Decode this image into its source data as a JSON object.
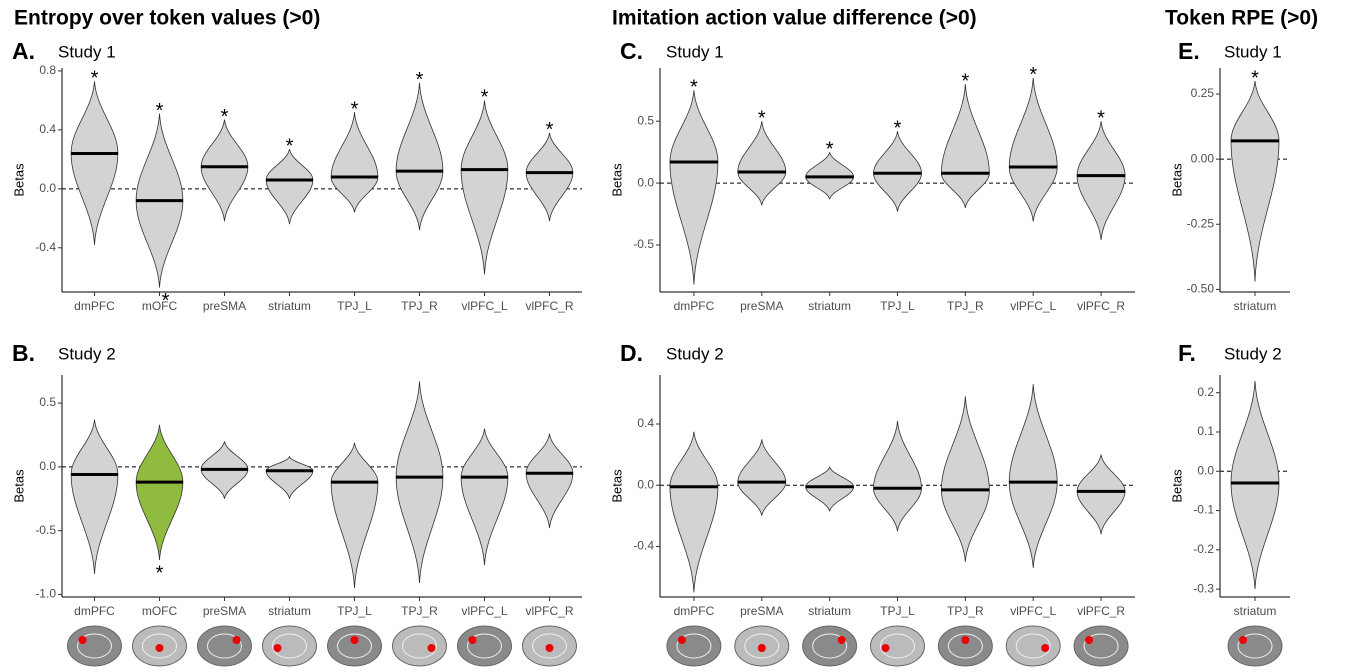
{
  "headers": [
    "Entropy over token values (>0)",
    "Imitation action value difference (>0)",
    "Token RPE (>0)"
  ],
  "chart_data": [
    {
      "type": "violin",
      "panel": "A.",
      "title": "Study 1",
      "y_label": "Betas",
      "categories": [
        "dmPFC",
        "mOFC",
        "preSMA",
        "striatum",
        "TPJ_L",
        "TPJ_R",
        "vlPFC_L",
        "vlPFC_R"
      ],
      "min": [
        -0.38,
        -0.67,
        -0.22,
        -0.24,
        -0.16,
        -0.28,
        -0.58,
        -0.22
      ],
      "median": [
        0.24,
        -0.08,
        0.15,
        0.06,
        0.08,
        0.12,
        0.13,
        0.11
      ],
      "max": [
        0.73,
        0.51,
        0.47,
        0.27,
        0.52,
        0.72,
        0.6,
        0.38
      ],
      "colors": [
        "#d3d3d3",
        "#d3d3d3",
        "#d3d3d3",
        "#d3d3d3",
        "#d3d3d3",
        "#d3d3d3",
        "#d3d3d3",
        "#d3d3d3"
      ],
      "stars_above": [
        "*",
        "*",
        "*",
        "*",
        "*",
        "*",
        "*",
        "*"
      ],
      "stars_below": [
        null,
        "*",
        null,
        null,
        null,
        null,
        null,
        null
      ],
      "reference_line": 0,
      "ylim": [
        -0.7,
        0.82
      ],
      "yticks": [
        -0.4,
        {
          "value": 0,
          "label": "0.0"
        },
        0.4,
        0.8
      ]
    },
    {
      "type": "violin",
      "panel": "B.",
      "title": "Study 2",
      "y_label": "Betas",
      "categories": [
        "dmPFC",
        "mOFC",
        "preSMA",
        "striatum",
        "TPJ_L",
        "TPJ_R",
        "vlPFC_L",
        "vlPFC_R"
      ],
      "min": [
        -0.84,
        -0.73,
        -0.25,
        -0.25,
        -0.95,
        -0.91,
        -0.77,
        -0.48
      ],
      "median": [
        -0.06,
        -0.12,
        -0.02,
        -0.03,
        -0.12,
        -0.08,
        -0.08,
        -0.05
      ],
      "max": [
        0.37,
        0.33,
        0.2,
        0.08,
        0.19,
        0.67,
        0.3,
        0.26
      ],
      "colors": [
        "#d3d3d3",
        "#8fbc3f",
        "#d3d3d3",
        "#d3d3d3",
        "#d3d3d3",
        "#d3d3d3",
        "#d3d3d3",
        "#d3d3d3"
      ],
      "stars_above": [
        null,
        null,
        null,
        null,
        null,
        null,
        null,
        null
      ],
      "stars_below": [
        null,
        "*",
        null,
        null,
        null,
        null,
        null,
        null
      ],
      "reference_line": 0,
      "ylim": [
        -1.02,
        0.72
      ],
      "yticks": [
        {
          "value": -1,
          "label": "-1.0"
        },
        -0.5,
        {
          "value": 0,
          "label": "0.0"
        },
        0.5
      ]
    },
    {
      "type": "violin",
      "panel": "C.",
      "title": "Study 1",
      "y_label": "Betas",
      "categories": [
        "dmPFC",
        "preSMA",
        "striatum",
        "TPJ_L",
        "TPJ_R",
        "vlPFC_L",
        "vlPFC_R"
      ],
      "min": [
        -0.82,
        -0.18,
        -0.13,
        -0.23,
        -0.2,
        -0.31,
        -0.46
      ],
      "median": [
        0.17,
        0.09,
        0.05,
        0.08,
        0.08,
        0.13,
        0.06
      ],
      "max": [
        0.75,
        0.5,
        0.25,
        0.42,
        0.8,
        0.85,
        0.5
      ],
      "colors": [
        "#d3d3d3",
        "#d3d3d3",
        "#d3d3d3",
        "#d3d3d3",
        "#d3d3d3",
        "#d3d3d3",
        "#d3d3d3"
      ],
      "stars_above": [
        "*",
        "*",
        "*",
        "*",
        "*",
        "*",
        "*"
      ],
      "stars_below": [
        null,
        null,
        null,
        null,
        null,
        null,
        null
      ],
      "reference_line": 0,
      "ylim": [
        -0.88,
        0.93
      ],
      "yticks": [
        -0.5,
        {
          "value": 0,
          "label": "0.0"
        },
        0.5
      ]
    },
    {
      "type": "violin",
      "panel": "D.",
      "title": "Study 2",
      "y_label": "Betas",
      "categories": [
        "dmPFC",
        "preSMA",
        "striatum",
        "TPJ_L",
        "TPJ_R",
        "vlPFC_L",
        "vlPFC_R"
      ],
      "min": [
        -0.7,
        -0.2,
        -0.17,
        -0.3,
        -0.5,
        -0.54,
        -0.32
      ],
      "median": [
        -0.01,
        0.02,
        -0.01,
        -0.02,
        -0.03,
        0.02,
        -0.04
      ],
      "max": [
        0.35,
        0.3,
        0.12,
        0.42,
        0.58,
        0.66,
        0.2
      ],
      "colors": [
        "#d3d3d3",
        "#d3d3d3",
        "#d3d3d3",
        "#d3d3d3",
        "#d3d3d3",
        "#d3d3d3",
        "#d3d3d3"
      ],
      "stars_above": [
        null,
        null,
        null,
        null,
        null,
        null,
        null
      ],
      "stars_below": [
        null,
        null,
        null,
        null,
        null,
        null,
        null
      ],
      "reference_line": 0,
      "ylim": [
        -0.73,
        0.72
      ],
      "yticks": [
        -0.4,
        {
          "value": 0,
          "label": "0.0"
        },
        0.4
      ]
    },
    {
      "type": "violin",
      "panel": "E.",
      "title": "Study 1",
      "y_label": "Betas",
      "categories": [
        "striatum"
      ],
      "min": [
        -0.47
      ],
      "median": [
        0.07
      ],
      "max": [
        0.3
      ],
      "colors": [
        "#d3d3d3"
      ],
      "stars_above": [
        "*"
      ],
      "stars_below": [
        null
      ],
      "reference_line": 0,
      "ylim": [
        -0.51,
        0.35
      ],
      "yticks": [
        {
          "value": -0.5,
          "label": "-0.50"
        },
        -0.25,
        {
          "value": 0,
          "label": "0.00"
        },
        0.25
      ]
    },
    {
      "type": "violin",
      "panel": "F.",
      "title": "Study 2",
      "y_label": "Betas",
      "categories": [
        "striatum"
      ],
      "min": [
        -0.3
      ],
      "median": [
        -0.03
      ],
      "max": [
        0.23
      ],
      "colors": [
        "#d3d3d3"
      ],
      "stars_above": [
        null
      ],
      "stars_below": [
        null
      ],
      "reference_line": 0,
      "ylim": [
        -0.32,
        0.245
      ],
      "yticks": [
        -0.3,
        -0.2,
        -0.1,
        {
          "value": 0,
          "label": "0.0"
        },
        0.1,
        0.2
      ]
    }
  ]
}
